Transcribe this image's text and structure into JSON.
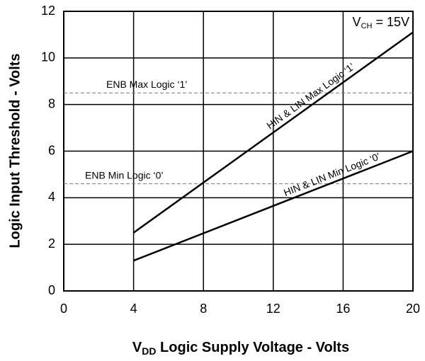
{
  "chart_data": {
    "type": "line",
    "x_label": {
      "main": "V",
      "sub": "DD",
      "rest": " Logic Supply Voltage - Volts"
    },
    "y_label": "Logic Input Threshold - Volts",
    "annotation": {
      "main": "V",
      "sub": "CH",
      "rest": " = 15V"
    },
    "series": [
      {
        "name": "HIN & LIN Max Logic ‘1’",
        "color": "#000000",
        "x": [
          4,
          20
        ],
        "values": [
          2.5,
          11.1
        ]
      },
      {
        "name": "HIN & LIN Min Logic ‘0’",
        "color": "#000000",
        "x": [
          4,
          20
        ],
        "values": [
          1.3,
          6.0
        ]
      }
    ],
    "reference_lines": [
      {
        "label": "ENB Max Logic ‘1’",
        "value": 8.5,
        "color": "#777777"
      },
      {
        "label": "ENB Min Logic ‘0’",
        "value": 4.6,
        "color": "#777777"
      }
    ],
    "xlim": [
      0,
      20
    ],
    "xticks": [
      0,
      4,
      8,
      12,
      16,
      20
    ],
    "ylim": [
      0,
      12
    ],
    "yticks": [
      0,
      2,
      4,
      6,
      8,
      10,
      12
    ],
    "grid": true
  }
}
